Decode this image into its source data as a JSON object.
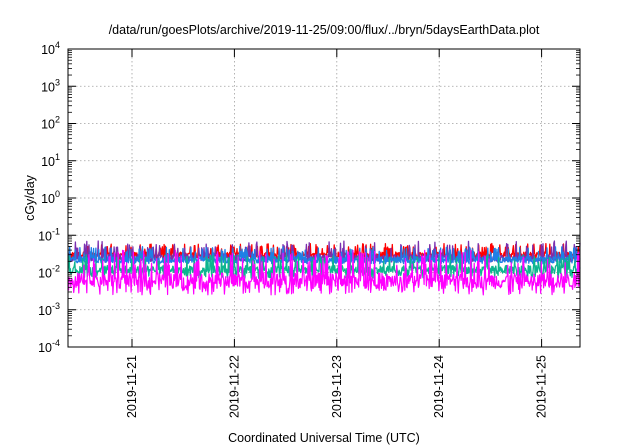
{
  "chart_data": {
    "type": "line",
    "title": "/data/run/goesPlots/archive/2019-11-25/09:00/flux/../bryn/5daysEarthData.plot",
    "xlabel": "Coordinated Universal Time (UTC)",
    "ylabel": "cGy/day",
    "y_scale": "log",
    "ylim": [
      0.0001,
      10000
    ],
    "y_ticks": [
      {
        "value": 0.0001,
        "base": "10",
        "exp": "-4"
      },
      {
        "value": 0.001,
        "base": "10",
        "exp": "-3"
      },
      {
        "value": 0.01,
        "base": "10",
        "exp": "-2"
      },
      {
        "value": 0.1,
        "base": "10",
        "exp": "-1"
      },
      {
        "value": 1,
        "base": "10",
        "exp": "0"
      },
      {
        "value": 10,
        "base": "10",
        "exp": "1"
      },
      {
        "value": 100,
        "base": "10",
        "exp": "2"
      },
      {
        "value": 1000,
        "base": "10",
        "exp": "3"
      },
      {
        "value": 10000,
        "base": "10",
        "exp": "4"
      }
    ],
    "x_range": [
      "2019-11-20 09:00",
      "2019-11-25 09:00"
    ],
    "x_ticks": [
      "2019-11-21",
      "2019-11-22",
      "2019-11-23",
      "2019-11-24",
      "2019-11-25"
    ],
    "grid": true,
    "series": [
      {
        "color": "#ff0000",
        "typical": 0.03,
        "low": 0.022,
        "high": 0.06
      },
      {
        "color": "#7a2fb0",
        "typical": 0.025,
        "low": 0.019,
        "high": 0.07
      },
      {
        "color": "#1e7fe6",
        "typical": 0.022,
        "low": 0.017,
        "high": 0.05
      },
      {
        "color": "#0db58f",
        "typical": 0.012,
        "low": 0.007,
        "high": 0.03
      },
      {
        "color": "#ff00ff",
        "typical": 0.006,
        "low": 0.0025,
        "high": 0.04
      }
    ]
  }
}
